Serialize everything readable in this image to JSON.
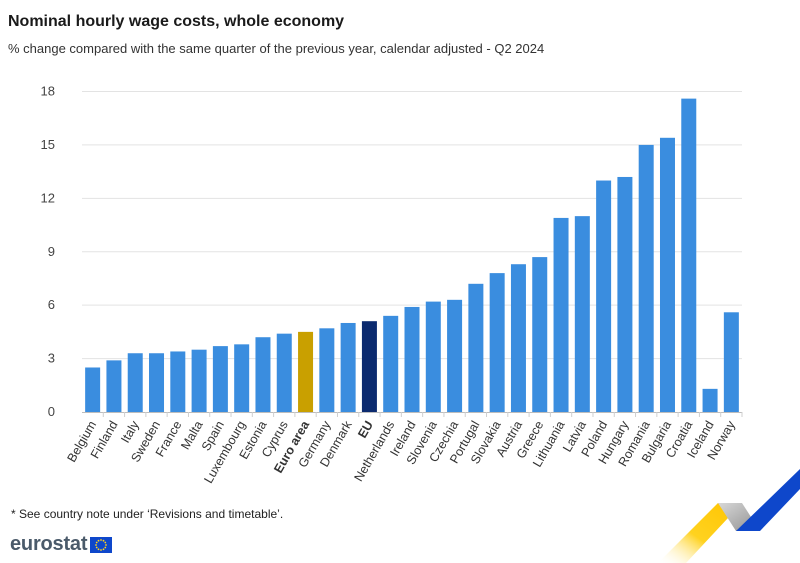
{
  "header": {
    "title": "Nominal hourly wage costs, whole economy",
    "subtitle": "% change compared with the same quarter of the previous year, calendar adjusted - Q2 2024"
  },
  "footnote": "* See country note under ‘Revisions and timetable’.",
  "logo": {
    "text": "eurostat",
    "flag_icon": "eu-flag-icon"
  },
  "colors": {
    "default_bar": "#3a8ddf",
    "euro_area_bar": "#c9a000",
    "eu_bar": "#0b2a6f",
    "grid": "#e3e3e3",
    "deco_yellow": "#ffd21f",
    "deco_blue": "#0e47cb",
    "deco_grey": "#b0b0b0"
  },
  "chart_data": {
    "type": "bar",
    "title": "Nominal hourly wage costs, whole economy",
    "subtitle": "% change compared with the same quarter of the previous year, calendar adjusted - Q2 2024",
    "categories": [
      "Belgium",
      "Finland",
      "Italy",
      "Sweden",
      "France",
      "Malta",
      "Spain",
      "Luxembourg",
      "Estonia",
      "Cyprus",
      "Euro area",
      "Germany",
      "Denmark",
      "EU",
      "Netherlands",
      "Ireland",
      "Slovenia",
      "Czechia",
      "Portugal",
      "Slovakia",
      "Austria",
      "Greece",
      "Lithuania",
      "Latvia",
      "Poland",
      "Hungary",
      "Romania",
      "Bulgaria",
      "Croatia",
      "Iceland",
      "Norway"
    ],
    "values": [
      2.5,
      2.9,
      3.3,
      3.3,
      3.4,
      3.5,
      3.7,
      3.8,
      4.2,
      4.4,
      4.5,
      4.7,
      5.0,
      5.1,
      5.4,
      5.9,
      6.2,
      6.3,
      7.2,
      7.8,
      8.3,
      8.7,
      10.9,
      11.0,
      13.0,
      13.2,
      15.0,
      15.4,
      17.6,
      1.3,
      5.6
    ],
    "highlight": {
      "Euro area": "euro_area_bar",
      "EU": "eu_bar"
    },
    "bold_categories": [
      "Euro area",
      "EU"
    ],
    "gap_before": [
      "Iceland"
    ],
    "yticks": [
      0,
      3,
      6,
      9,
      12,
      15,
      18
    ],
    "ylim": [
      0,
      18
    ],
    "grid": true,
    "legend": "none"
  }
}
